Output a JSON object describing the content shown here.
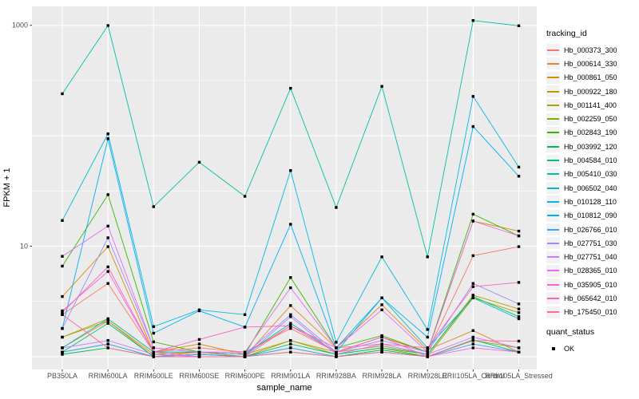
{
  "figure": {
    "y_axis_label": "FPKM + 1",
    "x_axis_label": "sample_name",
    "legend": {
      "tracking_title": "tracking_id",
      "quant_title": "quant_status",
      "quant_items": [
        {
          "label": "OK",
          "marker": "black-square"
        }
      ]
    }
  },
  "chart_data": {
    "type": "line",
    "title": "",
    "xlabel": "sample_name",
    "ylabel": "FPKM + 1",
    "y_scale": "log10",
    "ylim": [
      0.77,
      1480
    ],
    "grid": "on",
    "legend_position": "right",
    "point_marker": "black-square",
    "panel_color": "#EBEBEB",
    "gridline_color": "#FFFFFF",
    "y_ticks": [
      {
        "label": "1000",
        "value": 1000
      },
      {
        "label": "10",
        "value": 10
      }
    ],
    "y_gridlines_major": [
      1,
      10,
      100,
      1000
    ],
    "y_gridlines_minor": [
      3.162,
      31.62,
      316.2
    ],
    "categories": [
      "PB350LA",
      "RRIM600LA",
      "RRIM600LE",
      "RRIM600SE",
      "RRIM600PE",
      "RRIM901LA",
      "RRIM928BA",
      "RRIM928LA",
      "RRIM928LE",
      "RRII105LA_Control",
      "RRII105LA_Stressed"
    ],
    "series": [
      {
        "name": "Hb_000373_300",
        "color": "#F8766D",
        "quant_status": "OK",
        "values": [
          2.4,
          4.6,
          1.1,
          1.2,
          1.1,
          1.8,
          1.1,
          1.5,
          1.1,
          8.2,
          9.9
        ]
      },
      {
        "name": "Hb_000614_330",
        "color": "#EA8331",
        "quant_status": "OK",
        "values": [
          1.2,
          2.1,
          1.0,
          1.1,
          1.0,
          2.9,
          1.2,
          2.95,
          1.15,
          1.72,
          1.1
        ]
      },
      {
        "name": "Hb_000861_050",
        "color": "#D89000",
        "quant_status": "OK",
        "values": [
          3.5,
          9.9,
          1.1,
          1.3,
          1.05,
          1.9,
          1.1,
          1.5,
          1.1,
          16.9,
          13.7
        ]
      },
      {
        "name": "Hb_000922_180",
        "color": "#C09B00",
        "quant_status": "OK",
        "values": [
          1.5,
          2.1,
          1.05,
          1.1,
          1.0,
          1.4,
          1.1,
          1.25,
          1.05,
          3.6,
          2.7
        ]
      },
      {
        "name": "Hb_001141_400",
        "color": "#A3A500",
        "quant_status": "OK",
        "values": [
          1.5,
          2.2,
          1.1,
          1.1,
          1.05,
          1.4,
          1.05,
          1.2,
          1.0,
          3.4,
          2.5
        ]
      },
      {
        "name": "Hb_002259_050",
        "color": "#7CAE00",
        "quant_status": "OK",
        "values": [
          1.1,
          1.3,
          1.0,
          1.05,
          1.0,
          1.2,
          1.0,
          1.1,
          1.0,
          1.4,
          1.2
        ]
      },
      {
        "name": "Hb_002843_190",
        "color": "#39B600",
        "quant_status": "OK",
        "values": [
          6.6,
          29.3,
          1.36,
          1.1,
          1.05,
          5.2,
          1.2,
          1.55,
          1.1,
          19.5,
          12.4
        ]
      },
      {
        "name": "Hb_003992_120",
        "color": "#00BB4E",
        "quant_status": "OK",
        "values": [
          1.05,
          1.2,
          1.0,
          1.0,
          1.0,
          1.1,
          1.0,
          1.15,
          1.0,
          1.42,
          1.1
        ]
      },
      {
        "name": "Hb_004584_010",
        "color": "#00BF7D",
        "quant_status": "OK",
        "values": [
          1.1,
          2.0,
          1.0,
          1.05,
          1.0,
          1.3,
          1.05,
          1.2,
          1.05,
          3.5,
          2.3
        ]
      },
      {
        "name": "Hb_005410_030",
        "color": "#00C1A3",
        "quant_status": "OK",
        "values": [
          240,
          995,
          22.8,
          57.6,
          28.3,
          269,
          22.4,
          280,
          8.0,
          1105,
          990
        ]
      },
      {
        "name": "Hb_006502_040",
        "color": "#00BFC4",
        "quant_status": "OK",
        "values": [
          1.2,
          2.2,
          1.1,
          1.1,
          1.05,
          2.0,
          1.1,
          3.4,
          1.2,
          3.4,
          2.2
        ]
      },
      {
        "name": "Hb_010128_110",
        "color": "#00BAE0",
        "quant_status": "OK",
        "values": [
          17.1,
          104,
          1.87,
          2.65,
          2.4,
          48.4,
          1.35,
          8.0,
          1.76,
          227,
          52
        ]
      },
      {
        "name": "Hb_010812_090",
        "color": "#00B0F6",
        "quant_status": "OK",
        "values": [
          1.8,
          94,
          1.63,
          2.6,
          1.85,
          15.8,
          1.2,
          3.4,
          1.5,
          121,
          43
        ]
      },
      {
        "name": "Hb_026766_010",
        "color": "#35A2FF",
        "quant_status": "OK",
        "values": [
          1.1,
          1.3,
          1.0,
          1.05,
          1.0,
          1.2,
          1.0,
          1.1,
          1.0,
          1.3,
          1.1
        ]
      },
      {
        "name": "Hb_027751_030",
        "color": "#9590FF",
        "quant_status": "OK",
        "values": [
          1.8,
          11.9,
          1.2,
          1.1,
          1.05,
          2.4,
          1.1,
          1.4,
          1.1,
          4.6,
          3.0
        ]
      },
      {
        "name": "Hb_027751_040",
        "color": "#C77CFF",
        "quant_status": "OK",
        "values": [
          1.2,
          1.4,
          1.05,
          1.0,
          1.0,
          2.3,
          1.05,
          1.3,
          1.05,
          1.5,
          1.2
        ]
      },
      {
        "name": "Hb_028365_010",
        "color": "#E76BF3",
        "quant_status": "OK",
        "values": [
          8.1,
          15.2,
          1.2,
          1.1,
          1.1,
          4.2,
          1.2,
          2.65,
          1.1,
          16.9,
          12.4
        ]
      },
      {
        "name": "Hb_035905_010",
        "color": "#FA62DB",
        "quant_status": "OK",
        "values": [
          2.6,
          5.9,
          1.1,
          1.0,
          1.0,
          1.9,
          1.1,
          1.5,
          1.0,
          1.2,
          1.1
        ]
      },
      {
        "name": "Hb_065642_010",
        "color": "#FF62BC",
        "quant_status": "OK",
        "values": [
          2.5,
          6.5,
          1.1,
          1.43,
          1.85,
          1.9,
          1.2,
          1.3,
          1.2,
          4.3,
          4.7
        ]
      },
      {
        "name": "Hb_175450_010",
        "color": "#FF6A98",
        "quant_status": "OK",
        "values": [
          2.4,
          1.2,
          1.0,
          1.0,
          1.0,
          1.1,
          1.0,
          1.1,
          1.0,
          1.4,
          1.38
        ]
      }
    ]
  }
}
